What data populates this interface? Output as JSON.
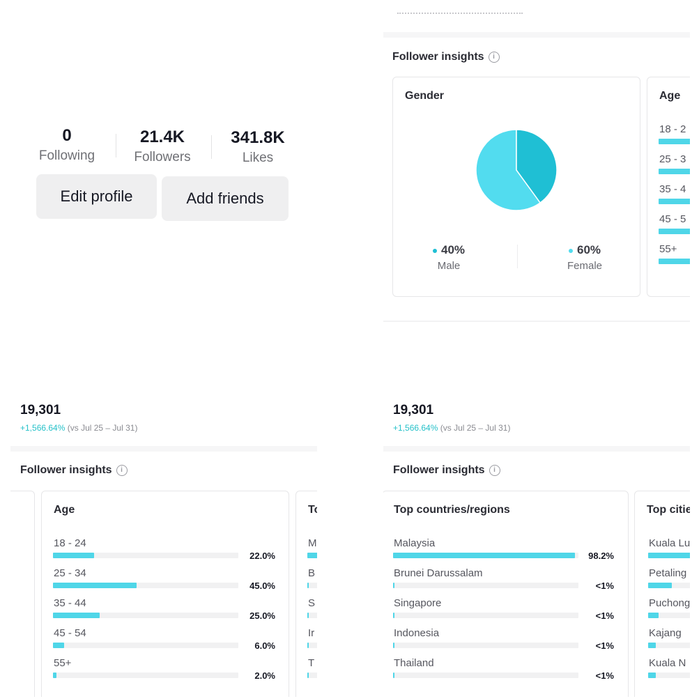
{
  "profile": {
    "stats": [
      {
        "value": "0",
        "label": "Following"
      },
      {
        "value": "21.4K",
        "label": "Followers"
      },
      {
        "value": "341.8K",
        "label": "Likes"
      }
    ],
    "buttons": {
      "edit": "Edit profile",
      "add": "Add friends"
    }
  },
  "insights_title": "Follower insights",
  "info_glyph": "i",
  "gender": {
    "title": "Gender",
    "male": {
      "value": "40%",
      "label": "Male",
      "fraction": 0.4,
      "color": "#1fbfd4"
    },
    "female": {
      "value": "60%",
      "label": "Female",
      "fraction": 0.6,
      "color": "#52dcef"
    }
  },
  "age": {
    "title": "Age",
    "rows": [
      {
        "label": "18 - 24",
        "value": "22.0%",
        "fraction": 0.22
      },
      {
        "label": "25 - 34",
        "value": "45.0%",
        "fraction": 0.45
      },
      {
        "label": "35 - 44",
        "value": "25.0%",
        "fraction": 0.25
      },
      {
        "label": "45 - 54",
        "value": "6.0%",
        "fraction": 0.06
      },
      {
        "label": "55+",
        "value": "2.0%",
        "fraction": 0.02
      }
    ],
    "partial_labels": [
      "18 - 2",
      "25 - 3",
      "35 - 4",
      "45 - 5",
      "55+"
    ]
  },
  "summary": {
    "total": "19,301",
    "change": "+1,566.64%",
    "compare": "(vs Jul 25 – Jul 31)"
  },
  "countries": {
    "title": "Top countries/regions",
    "partial_title": "To",
    "rows": [
      {
        "label": "Malaysia",
        "value": "98.2%",
        "fraction": 0.982
      },
      {
        "label": "Brunei Darussalam",
        "value": "<1%",
        "fraction": 0.005
      },
      {
        "label": "Singapore",
        "value": "<1%",
        "fraction": 0.005
      },
      {
        "label": "Indonesia",
        "value": "<1%",
        "fraction": 0.005
      },
      {
        "label": "Thailand",
        "value": "<1%",
        "fraction": 0.005
      }
    ],
    "partial_labels": [
      "M",
      "B",
      "S",
      "Ir",
      "T"
    ]
  },
  "cities": {
    "title": "Top citie",
    "rows": [
      {
        "label": "Kuala Lu",
        "fraction": 0.9
      },
      {
        "label": "Petaling",
        "fraction": 0.45
      },
      {
        "label": "Puchong",
        "fraction": 0.2
      },
      {
        "label": "Kajang",
        "fraction": 0.15
      },
      {
        "label": "Kuala N",
        "fraction": 0.15
      }
    ]
  },
  "colors": {
    "bar": "#4fd6e8",
    "track": "#f1f1f2",
    "accent": "#26c1c9"
  }
}
